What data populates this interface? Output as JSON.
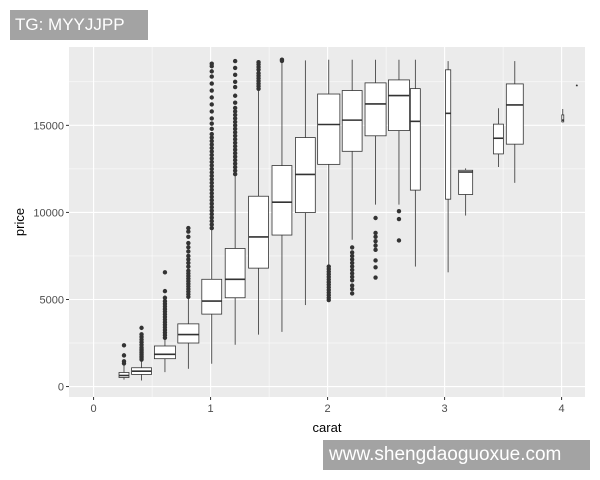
{
  "overlay": {
    "banner_text": "TG: MYYJJPP",
    "watermark_text": "www.shengdaoguoxue.com"
  },
  "chart_data": {
    "type": "boxplot",
    "title": "",
    "xlabel": "carat",
    "ylabel": "price",
    "xlim": [
      -0.21,
      4.2
    ],
    "ylim": [
      -600,
      19500
    ],
    "xticks": [
      0,
      1,
      2,
      3,
      4
    ],
    "xtick_labels": [
      "0",
      "1",
      "2",
      "3",
      "4"
    ],
    "yticks": [
      0,
      5000,
      10000,
      15000
    ],
    "ytick_labels": [
      "0",
      "5000",
      "10000",
      "15000"
    ],
    "grid": true,
    "panel_background": "#ebebeb",
    "grid_color": "#ffffff",
    "box_fill": "#ffffff",
    "line_color": "#333333",
    "boxes": [
      {
        "x": 0.26,
        "width": 0.085,
        "lower": 400,
        "q1": 520,
        "median": 635,
        "q3": 808,
        "upper": 1210,
        "outliers": [
          1330,
          1450,
          1790,
          2370
        ]
      },
      {
        "x": 0.41,
        "width": 0.17,
        "lower": 345,
        "q1": 695,
        "median": 885,
        "q3": 1080,
        "upper": 1500,
        "outliers": [
          1550,
          1650,
          1750,
          1850,
          1950,
          2050,
          2150,
          2250,
          2400,
          2550,
          2700,
          2850,
          3000,
          3370
        ]
      },
      {
        "x": 0.61,
        "width": 0.18,
        "lower": 830,
        "q1": 1600,
        "median": 1850,
        "q3": 2330,
        "upper": 2750,
        "outliers": [
          2800,
          2950,
          3100,
          3250,
          3400,
          3550,
          3700,
          3850,
          4000,
          4150,
          4300,
          4450,
          4600,
          4750,
          4900,
          5100,
          5480,
          6560
        ]
      },
      {
        "x": 0.81,
        "width": 0.18,
        "lower": 1020,
        "q1": 2500,
        "median": 2985,
        "q3": 3600,
        "upper": 5060,
        "outliers": [
          5150,
          5300,
          5450,
          5600,
          5750,
          5900,
          6050,
          6200,
          6350,
          6500,
          6650,
          6890,
          7100,
          7300,
          7500,
          7760,
          8000,
          8240,
          8600,
          8900,
          9100
        ]
      },
      {
        "x": 1.01,
        "width": 0.17,
        "lower": 1310,
        "q1": 4160,
        "median": 4910,
        "q3": 6160,
        "upper": 9000,
        "outliers": [
          9100,
          9300,
          9500,
          9700,
          9900,
          10100,
          10300,
          10500,
          10700,
          10900,
          11100,
          11300,
          11500,
          11700,
          11900,
          12100,
          12300,
          12500,
          12700,
          12900,
          13100,
          13300,
          13500,
          13700,
          13900,
          14100,
          14300,
          14500,
          14800,
          15100,
          15400,
          15800,
          16200,
          16600,
          17000,
          17400,
          17800,
          18100,
          18400,
          18540
        ]
      },
      {
        "x": 1.21,
        "width": 0.17,
        "lower": 2400,
        "q1": 5100,
        "median": 6160,
        "q3": 7930,
        "upper": 12090,
        "outliers": [
          12200,
          12400,
          12600,
          12800,
          13000,
          13200,
          13400,
          13600,
          13800,
          14000,
          14200,
          14400,
          14600,
          14800,
          15000,
          15200,
          15400,
          15600,
          15800,
          16000,
          16300,
          16700,
          17200,
          17500,
          17900,
          18300,
          18690
        ]
      },
      {
        "x": 1.41,
        "width": 0.17,
        "lower": 2980,
        "q1": 6800,
        "median": 8590,
        "q3": 10930,
        "upper": 17000,
        "outliers": [
          17100,
          17250,
          17400,
          17550,
          17700,
          17850,
          18000,
          18200,
          18350,
          18500,
          18630
        ]
      },
      {
        "x": 1.61,
        "width": 0.17,
        "lower": 3140,
        "q1": 8700,
        "median": 10590,
        "q3": 12690,
        "upper": 18630,
        "outliers": [
          18700,
          18770
        ]
      },
      {
        "x": 1.81,
        "width": 0.17,
        "lower": 4680,
        "q1": 9990,
        "median": 12180,
        "q3": 14300,
        "upper": 18730,
        "outliers": []
      },
      {
        "x": 2.01,
        "width": 0.19,
        "lower": 6990,
        "q1": 12760,
        "median": 15050,
        "q3": 16800,
        "upper": 18770,
        "outliers": [
          4970,
          5100,
          5250,
          5400,
          5550,
          5700,
          5850,
          6000,
          6150,
          6300,
          6450,
          6600,
          6750,
          6890
        ]
      },
      {
        "x": 2.21,
        "width": 0.17,
        "lower": 8430,
        "q1": 13510,
        "median": 15300,
        "q3": 17000,
        "upper": 18770,
        "outliers": [
          5350,
          5600,
          5800,
          6100,
          6300,
          6500,
          6700,
          6900,
          7100,
          7300,
          7500,
          7700,
          7990
        ]
      },
      {
        "x": 2.41,
        "width": 0.18,
        "lower": 10450,
        "q1": 14400,
        "median": 16230,
        "q3": 17440,
        "upper": 18770,
        "outliers": [
          6260,
          6850,
          7240,
          7850,
          8100,
          8350,
          8600,
          8820,
          9680
        ]
      },
      {
        "x": 2.61,
        "width": 0.18,
        "lower": 10450,
        "q1": 14700,
        "median": 16710,
        "q3": 17610,
        "upper": 18770,
        "outliers": [
          8390,
          9620,
          10070
        ]
      },
      {
        "x": 2.75,
        "width": 0.085,
        "lower": 6890,
        "q1": 11280,
        "median": 15230,
        "q3": 17110,
        "upper": 18770,
        "outliers": []
      },
      {
        "x": 3.03,
        "width": 0.045,
        "lower": 6560,
        "q1": 10760,
        "median": 15690,
        "q3": 18190,
        "upper": 18690,
        "outliers": []
      },
      {
        "x": 3.18,
        "width": 0.12,
        "lower": 9820,
        "q1": 11030,
        "median": 12320,
        "q3": 12420,
        "upper": 12530,
        "outliers": []
      },
      {
        "x": 3.46,
        "width": 0.085,
        "lower": 12610,
        "q1": 13360,
        "median": 14260,
        "q3": 15070,
        "upper": 15980,
        "outliers": []
      },
      {
        "x": 3.6,
        "width": 0.145,
        "lower": 11700,
        "q1": 13920,
        "median": 16170,
        "q3": 17380,
        "upper": 18690,
        "outliers": []
      },
      {
        "x": 4.01,
        "width": 0.017,
        "lower": 15170,
        "q1": 15200,
        "median": 15300,
        "q3": 15600,
        "upper": 15940,
        "outliers": []
      },
      {
        "x": 4.13,
        "width": 0.008,
        "lower": 17300,
        "q1": 17300,
        "median": 17300,
        "q3": 17300,
        "upper": 17300,
        "outliers": []
      }
    ]
  }
}
